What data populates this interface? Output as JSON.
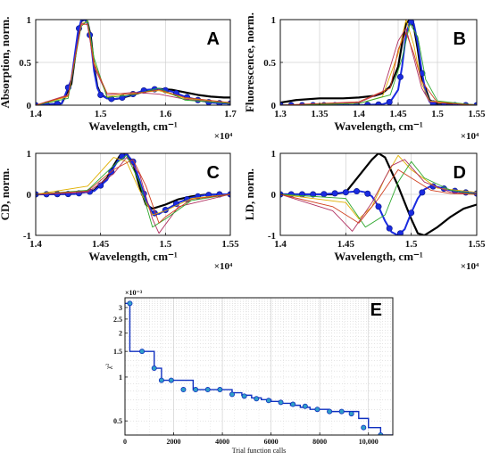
{
  "chart_data": [
    {
      "panel": "A",
      "type": "line",
      "letter": "A",
      "xlabel": "Wavelength, cm⁻¹",
      "ylabel": "Absorption, norm.",
      "x_multiplier": "×10⁴",
      "xlim": [
        1.4,
        1.7
      ],
      "ylim": [
        0,
        1
      ],
      "xticks": [
        1.4,
        1.5,
        1.6,
        1.7
      ],
      "yticks": [
        0,
        0.5,
        1
      ],
      "xtick_labels": [
        "1.4",
        "1.5",
        "1.6",
        "1.7"
      ],
      "ytick_labels": [
        "0",
        "0.5",
        "1"
      ],
      "grid": true,
      "series": [
        {
          "role": "reference",
          "color": "#000000",
          "x": [
            1.4,
            1.44,
            1.455,
            1.465,
            1.47,
            1.475,
            1.48,
            1.485,
            1.49,
            1.495,
            1.5,
            1.51,
            1.52,
            1.53,
            1.55,
            1.57,
            1.59,
            1.61,
            1.63,
            1.65,
            1.67,
            1.69,
            1.7
          ],
          "y": [
            0.0,
            0.02,
            0.25,
            0.8,
            0.98,
            1.0,
            0.97,
            0.8,
            0.45,
            0.22,
            0.13,
            0.08,
            0.07,
            0.08,
            0.12,
            0.17,
            0.19,
            0.18,
            0.15,
            0.12,
            0.1,
            0.09,
            0.09
          ]
        },
        {
          "role": "fit",
          "color": "#1a2be0",
          "x": [
            1.4,
            1.44,
            1.455,
            1.465,
            1.47,
            1.475,
            1.48,
            1.485,
            1.49,
            1.495,
            1.5,
            1.51,
            1.52,
            1.53,
            1.55,
            1.57,
            1.59,
            1.61,
            1.63,
            1.65,
            1.67,
            1.69,
            1.7
          ],
          "y": [
            0.0,
            0.02,
            0.3,
            0.85,
            0.99,
            1.0,
            0.96,
            0.75,
            0.4,
            0.2,
            0.12,
            0.08,
            0.07,
            0.08,
            0.13,
            0.18,
            0.19,
            0.16,
            0.1,
            0.06,
            0.03,
            0.02,
            0.02
          ]
        },
        {
          "role": "trial",
          "color": "#e0b000",
          "x": [
            1.4,
            1.45,
            1.47,
            1.48,
            1.49,
            1.51,
            1.55,
            1.59,
            1.63,
            1.7
          ],
          "y": [
            0.0,
            0.1,
            0.95,
            0.98,
            0.5,
            0.1,
            0.14,
            0.17,
            0.08,
            0.03
          ]
        },
        {
          "role": "trial",
          "color": "#b03060",
          "x": [
            1.4,
            1.45,
            1.47,
            1.48,
            1.49,
            1.51,
            1.55,
            1.59,
            1.63,
            1.7
          ],
          "y": [
            0.0,
            0.12,
            0.96,
            0.94,
            0.45,
            0.12,
            0.15,
            0.13,
            0.07,
            0.02
          ]
        },
        {
          "role": "trial",
          "color": "#2ea82e",
          "x": [
            1.4,
            1.45,
            1.47,
            1.48,
            1.49,
            1.51,
            1.55,
            1.59,
            1.63,
            1.7
          ],
          "y": [
            0.0,
            0.08,
            0.92,
            0.99,
            0.55,
            0.09,
            0.12,
            0.2,
            0.06,
            0.02
          ]
        },
        {
          "role": "trial",
          "color": "#d04020",
          "x": [
            1.4,
            1.45,
            1.47,
            1.48,
            1.49,
            1.51,
            1.55,
            1.59,
            1.63,
            1.7
          ],
          "y": [
            0.0,
            0.11,
            0.94,
            0.95,
            0.48,
            0.14,
            0.13,
            0.18,
            0.09,
            0.03
          ]
        }
      ]
    },
    {
      "panel": "B",
      "type": "line",
      "letter": "B",
      "xlabel": "Wavelength, cm⁻¹",
      "ylabel": "Fluorescence, norm.",
      "x_multiplier": "×10⁴",
      "xlim": [
        1.3,
        1.55
      ],
      "ylim": [
        0,
        1
      ],
      "xticks": [
        1.3,
        1.35,
        1.4,
        1.45,
        1.5,
        1.55
      ],
      "yticks": [
        0,
        0.5,
        1
      ],
      "xtick_labels": [
        "1.3",
        "1.35",
        "1.4",
        "1.45",
        "1.5",
        "1.55"
      ],
      "ytick_labels": [
        "0",
        "0.5",
        "1"
      ],
      "grid": true,
      "series": [
        {
          "role": "reference",
          "color": "#000000",
          "x": [
            1.3,
            1.32,
            1.35,
            1.38,
            1.4,
            1.42,
            1.43,
            1.44,
            1.45,
            1.455,
            1.46,
            1.465,
            1.47,
            1.475,
            1.48,
            1.49,
            1.5,
            1.55
          ],
          "y": [
            0.03,
            0.06,
            0.08,
            0.08,
            0.09,
            0.11,
            0.14,
            0.22,
            0.45,
            0.72,
            0.95,
            1.0,
            0.92,
            0.65,
            0.32,
            0.06,
            0.01,
            0.0
          ]
        },
        {
          "role": "fit",
          "color": "#1a2be0",
          "x": [
            1.3,
            1.35,
            1.4,
            1.43,
            1.44,
            1.45,
            1.455,
            1.46,
            1.465,
            1.47,
            1.475,
            1.48,
            1.485,
            1.49,
            1.5,
            1.55
          ],
          "y": [
            0.0,
            0.0,
            0.0,
            0.01,
            0.04,
            0.18,
            0.45,
            0.82,
            0.98,
            0.95,
            0.72,
            0.4,
            0.15,
            0.04,
            0.0,
            0.0
          ]
        },
        {
          "role": "trial",
          "color": "#e0b000",
          "x": [
            1.3,
            1.4,
            1.43,
            1.45,
            1.46,
            1.47,
            1.48,
            1.49,
            1.55
          ],
          "y": [
            0.0,
            0.02,
            0.1,
            0.6,
            1.0,
            0.7,
            0.25,
            0.05,
            0.0
          ]
        },
        {
          "role": "trial",
          "color": "#b03060",
          "x": [
            1.3,
            1.4,
            1.43,
            1.45,
            1.46,
            1.47,
            1.48,
            1.49,
            1.55
          ],
          "y": [
            0.0,
            0.03,
            0.15,
            0.75,
            0.9,
            0.55,
            0.2,
            0.04,
            0.0
          ]
        },
        {
          "role": "trial",
          "color": "#2ea82e",
          "x": [
            1.3,
            1.4,
            1.44,
            1.455,
            1.465,
            1.475,
            1.485,
            1.5,
            1.55
          ],
          "y": [
            0.0,
            0.02,
            0.12,
            0.55,
            0.95,
            0.8,
            0.3,
            0.05,
            0.0
          ]
        },
        {
          "role": "trial",
          "color": "#d04020",
          "x": [
            1.3,
            1.4,
            1.44,
            1.45,
            1.46,
            1.47,
            1.48,
            1.5,
            1.55
          ],
          "y": [
            0.0,
            0.04,
            0.2,
            0.65,
            0.85,
            0.6,
            0.28,
            0.03,
            0.0
          ]
        }
      ]
    },
    {
      "panel": "C",
      "type": "line",
      "letter": "C",
      "xlabel": "Wavelength, cm⁻¹",
      "ylabel": "CD, norm.",
      "x_multiplier": "×10⁴",
      "xlim": [
        1.4,
        1.55
      ],
      "ylim": [
        -1,
        1
      ],
      "xticks": [
        1.4,
        1.45,
        1.5,
        1.55
      ],
      "yticks": [
        -1,
        0,
        1
      ],
      "xtick_labels": [
        "1.4",
        "1.45",
        "1.5",
        "1.55"
      ],
      "ytick_labels": [
        "-1",
        "0",
        "1"
      ],
      "grid": true,
      "series": [
        {
          "role": "reference",
          "color": "#000000",
          "x": [
            1.4,
            1.43,
            1.445,
            1.455,
            1.46,
            1.465,
            1.47,
            1.475,
            1.48,
            1.485,
            1.49,
            1.5,
            1.51,
            1.52,
            1.53,
            1.55
          ],
          "y": [
            0.0,
            0.01,
            0.1,
            0.4,
            0.7,
            0.95,
            1.0,
            0.75,
            0.2,
            -0.25,
            -0.35,
            -0.25,
            -0.12,
            -0.05,
            -0.01,
            0.0
          ]
        },
        {
          "role": "fit",
          "color": "#1a2be0",
          "x": [
            1.4,
            1.43,
            1.445,
            1.455,
            1.46,
            1.465,
            1.47,
            1.475,
            1.48,
            1.485,
            1.49,
            1.495,
            1.5,
            1.51,
            1.52,
            1.53,
            1.54,
            1.55
          ],
          "y": [
            0.0,
            0.01,
            0.08,
            0.35,
            0.65,
            0.9,
            0.98,
            0.8,
            0.35,
            -0.15,
            -0.45,
            -0.48,
            -0.38,
            -0.2,
            -0.08,
            -0.02,
            0.0,
            0.0
          ]
        },
        {
          "role": "trial",
          "color": "#e0b000",
          "x": [
            1.4,
            1.44,
            1.46,
            1.47,
            1.48,
            1.49,
            1.5,
            1.52,
            1.55
          ],
          "y": [
            0.0,
            0.2,
            0.9,
            0.8,
            0.1,
            -0.5,
            -0.4,
            -0.1,
            0.0
          ]
        },
        {
          "role": "trial",
          "color": "#b03060",
          "x": [
            1.4,
            1.44,
            1.46,
            1.47,
            1.48,
            1.49,
            1.495,
            1.51,
            1.55
          ],
          "y": [
            0.0,
            0.05,
            0.5,
            0.9,
            0.5,
            -0.6,
            -0.95,
            -0.3,
            0.0
          ]
        },
        {
          "role": "trial",
          "color": "#2ea82e",
          "x": [
            1.4,
            1.44,
            1.46,
            1.47,
            1.48,
            1.49,
            1.5,
            1.52,
            1.55
          ],
          "y": [
            0.0,
            0.1,
            0.7,
            0.95,
            0.3,
            -0.8,
            -0.6,
            -0.15,
            0.0
          ]
        },
        {
          "role": "trial",
          "color": "#d04020",
          "x": [
            1.4,
            1.44,
            1.46,
            1.475,
            1.485,
            1.495,
            1.5,
            1.52,
            1.55
          ],
          "y": [
            0.0,
            0.08,
            0.6,
            0.85,
            0.2,
            -0.7,
            -0.55,
            -0.12,
            0.0
          ]
        }
      ]
    },
    {
      "panel": "D",
      "type": "line",
      "letter": "D",
      "xlabel": "Wavelength, cm⁻¹",
      "ylabel": "LD, norm.",
      "x_multiplier": "×10⁴",
      "xlim": [
        1.4,
        1.55
      ],
      "ylim": [
        -1,
        1
      ],
      "xticks": [
        1.4,
        1.45,
        1.5,
        1.55
      ],
      "yticks": [
        -1,
        0,
        1
      ],
      "xtick_labels": [
        "1.4",
        "1.45",
        "1.5",
        "1.55"
      ],
      "ytick_labels": [
        "-1",
        "0",
        "1"
      ],
      "grid": true,
      "series": [
        {
          "role": "reference",
          "color": "#000000",
          "x": [
            1.4,
            1.44,
            1.45,
            1.46,
            1.47,
            1.475,
            1.48,
            1.49,
            1.5,
            1.505,
            1.51,
            1.52,
            1.53,
            1.54,
            1.55
          ],
          "y": [
            0.0,
            0.0,
            0.05,
            0.45,
            0.85,
            1.0,
            0.9,
            0.2,
            -0.6,
            -0.95,
            -1.0,
            -0.8,
            -0.55,
            -0.35,
            -0.25
          ]
        },
        {
          "role": "fit",
          "color": "#1a2be0",
          "x": [
            1.4,
            1.43,
            1.44,
            1.45,
            1.46,
            1.465,
            1.47,
            1.475,
            1.48,
            1.485,
            1.49,
            1.495,
            1.5,
            1.505,
            1.51,
            1.515,
            1.52,
            1.53,
            1.54,
            1.55
          ],
          "y": [
            0.0,
            0.0,
            0.02,
            0.05,
            0.08,
            0.05,
            -0.05,
            -0.3,
            -0.65,
            -0.92,
            -1.0,
            -0.85,
            -0.45,
            -0.1,
            0.12,
            0.2,
            0.18,
            0.1,
            0.05,
            0.02
          ]
        },
        {
          "role": "trial",
          "color": "#e0b000",
          "x": [
            1.4,
            1.45,
            1.46,
            1.47,
            1.48,
            1.49,
            1.5,
            1.52,
            1.55
          ],
          "y": [
            0.0,
            -0.2,
            -0.6,
            -0.3,
            0.4,
            0.95,
            0.6,
            0.15,
            0.05
          ]
        },
        {
          "role": "trial",
          "color": "#b03060",
          "x": [
            1.4,
            1.44,
            1.455,
            1.47,
            1.485,
            1.495,
            1.51,
            1.53,
            1.55
          ],
          "y": [
            0.0,
            -0.4,
            -0.9,
            -0.2,
            0.7,
            0.85,
            0.3,
            0.05,
            0.0
          ]
        },
        {
          "role": "trial",
          "color": "#2ea82e",
          "x": [
            1.4,
            1.45,
            1.465,
            1.48,
            1.49,
            1.5,
            1.51,
            1.53,
            1.55
          ],
          "y": [
            0.0,
            -0.1,
            -0.8,
            -0.5,
            0.3,
            0.8,
            0.4,
            0.1,
            0.0
          ]
        },
        {
          "role": "trial",
          "color": "#d04020",
          "x": [
            1.4,
            1.44,
            1.46,
            1.475,
            1.49,
            1.5,
            1.515,
            1.53,
            1.55
          ],
          "y": [
            0.0,
            -0.3,
            -0.7,
            -0.1,
            0.6,
            0.4,
            0.1,
            0.02,
            0.0
          ]
        }
      ]
    },
    {
      "panel": "E",
      "type": "line",
      "letter": "E",
      "xlabel": "Trial function calls",
      "ylabel": "χ²",
      "y_multiplier": "×10⁻³",
      "yscale": "log",
      "xlim": [
        0,
        11000
      ],
      "ylim": [
        0.0004,
        0.0035
      ],
      "xticks": [
        0,
        2000,
        4000,
        6000,
        8000,
        10000
      ],
      "xtick_labels": [
        "0",
        "2000",
        "4000",
        "6000",
        "8000",
        "10,000"
      ],
      "yticks": [
        0.0005,
        0.001,
        0.0015,
        0.002,
        0.0025,
        0.003
      ],
      "ytick_labels": [
        "0.5",
        "1",
        "1.5",
        "2",
        "2.5",
        "3"
      ],
      "grid": true,
      "series": [
        {
          "role": "chi2",
          "color": "#1030c0",
          "step_x": [
            0,
            200,
            700,
            1200,
            1500,
            2400,
            2800,
            4000,
            4400,
            4800,
            5200,
            5600,
            6000,
            6400,
            6800,
            7200,
            7600,
            8000,
            8400,
            8800,
            9200,
            9600,
            10000,
            10500,
            10800
          ],
          "step_y": [
            0.0032,
            0.0015,
            0.0015,
            0.00115,
            0.00095,
            0.00095,
            0.00082,
            0.00082,
            0.00078,
            0.00075,
            0.00072,
            0.0007,
            0.00068,
            0.00066,
            0.00064,
            0.00062,
            0.0006,
            0.0006,
            0.00058,
            0.00058,
            0.00058,
            0.00052,
            0.00045,
            0.0004,
            0.0004
          ]
        },
        {
          "role": "markers",
          "color": "#30a0c8",
          "x": [
            200,
            700,
            1200,
            1500,
            1900,
            2400,
            2900,
            3400,
            3900,
            4400,
            4900,
            5400,
            5900,
            6400,
            6900,
            7400,
            7900,
            8400,
            8900,
            9300,
            9800,
            10500
          ],
          "y": [
            0.0032,
            0.0015,
            0.00115,
            0.00095,
            0.00095,
            0.00082,
            0.00082,
            0.00082,
            0.00082,
            0.00076,
            0.00074,
            0.00071,
            0.00069,
            0.00067,
            0.00065,
            0.00063,
            0.0006,
            0.00058,
            0.00058,
            0.00056,
            0.00045,
            0.0004
          ]
        }
      ]
    }
  ]
}
